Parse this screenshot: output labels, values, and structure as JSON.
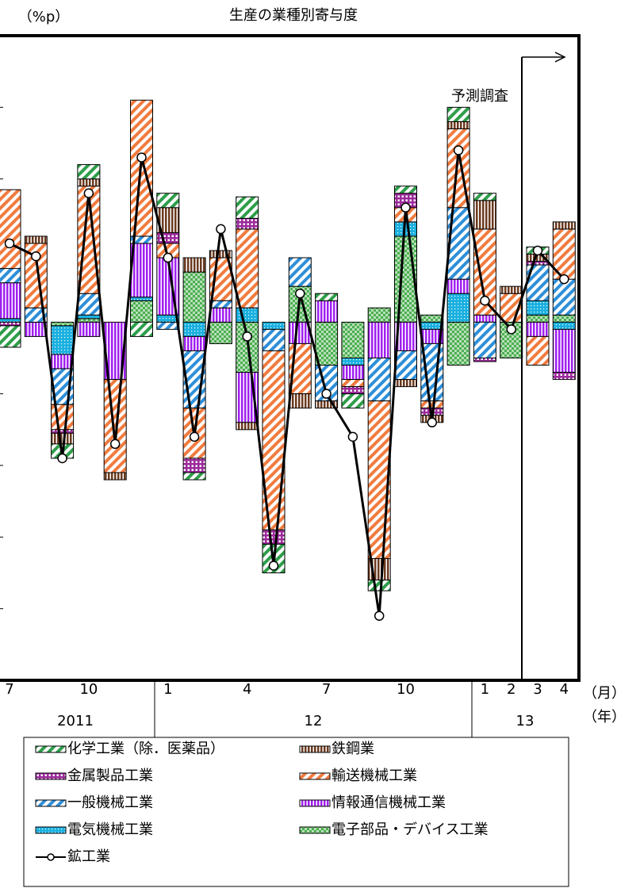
{
  "chart_data": {
    "type": "bar",
    "stacked": true,
    "title": "生産の業種別寄与度",
    "y_unit": "（%p）",
    "annotation": "予測調査",
    "x_unit": "（月）",
    "year_unit": "（年）",
    "years": [
      "2011",
      "12",
      "13"
    ],
    "categories": [
      "7",
      null,
      null,
      "10",
      null,
      null,
      "1",
      null,
      null,
      "4",
      null,
      null,
      "7",
      null,
      null,
      "10",
      null,
      null,
      "1",
      "2",
      "3",
      "4"
    ],
    "ylim": [
      -5,
      4
    ],
    "yticks": [
      -4,
      -3,
      -2,
      -1,
      0,
      1,
      2,
      3
    ],
    "series": [
      {
        "name": "化学工業（除．医薬品）",
        "color": "#2e9e4a",
        "pattern": "diagonal",
        "values": [
          -0.3,
          0,
          -0.2,
          0.2,
          0,
          -0.2,
          0.2,
          -0.1,
          0,
          0.3,
          -0.4,
          0,
          0.1,
          -0.2,
          -0.15,
          0.1,
          0,
          0.2,
          0.1,
          0,
          0.1,
          0
        ]
      },
      {
        "name": "鉄鋼業",
        "color": "#6b3a1f",
        "pattern": "vertical",
        "values": [
          0,
          0.1,
          -0.15,
          0.1,
          -0.1,
          0,
          0.35,
          0.2,
          0.1,
          -0.1,
          0,
          -0.2,
          -0.1,
          0,
          -0.3,
          -0.1,
          -0.1,
          0.1,
          0.4,
          0.1,
          0.1,
          0.1
        ]
      },
      {
        "name": "金属製品工業",
        "color": "#9b2a9b",
        "pattern": "grid",
        "values": [
          -0.05,
          0,
          -0.05,
          0,
          0,
          0,
          0.15,
          -0.2,
          0,
          0.15,
          -0.2,
          0,
          0,
          -0.1,
          0,
          0.2,
          -0.1,
          0,
          -0.05,
          0,
          0.05,
          -0.1
        ]
      },
      {
        "name": "輸送機械工業",
        "color": "#f07b3f",
        "pattern": "diagonal",
        "values": [
          1.1,
          0.9,
          -0.35,
          1.5,
          -1.3,
          1.9,
          0.2,
          -0.7,
          0.6,
          1.1,
          -2.5,
          -0.7,
          0,
          -0.1,
          -2.2,
          0.2,
          -0.1,
          1.1,
          1.2,
          0.4,
          -0.4,
          0.7
        ]
      },
      {
        "name": "一般機械工業",
        "color": "#2f8fd8",
        "pattern": "diagonal",
        "values": [
          0.2,
          0.2,
          -0.5,
          0.3,
          0,
          0.1,
          -0.1,
          -0.8,
          0.1,
          0,
          -0.3,
          0.4,
          -0.5,
          0,
          -0.6,
          -0.4,
          -0.8,
          1.0,
          -0.5,
          0,
          0.5,
          0.5
        ]
      },
      {
        "name": "情報通信機械工業",
        "color": "#a020f0",
        "pattern": "vertical",
        "values": [
          0.5,
          -0.2,
          -0.2,
          -0.2,
          -0.8,
          0.75,
          0.8,
          -0.2,
          0.2,
          -0.7,
          0,
          -0.3,
          0.3,
          -0.2,
          -0.5,
          -0.4,
          -0.2,
          0.2,
          0.1,
          0,
          -0.2,
          -0.6
        ]
      },
      {
        "name": "電気機械工業",
        "color": "#1ab0e0",
        "pattern": "dots",
        "values": [
          0.05,
          0,
          -0.4,
          0.05,
          0,
          0.05,
          0.1,
          -0.2,
          0,
          0.2,
          -0.1,
          0,
          0,
          -0.1,
          0,
          0.2,
          -0.1,
          0.4,
          0,
          0,
          0.2,
          -0.1
        ]
      },
      {
        "name": "電子部品・デバイス工業",
        "color": "#4caf50",
        "pattern": "check",
        "values": [
          0,
          0,
          -0.05,
          0.05,
          0,
          0.3,
          0,
          0.7,
          -0.3,
          -0.7,
          0,
          0.5,
          -0.6,
          -0.5,
          0.2,
          1.2,
          0.1,
          -0.6,
          0,
          -0.5,
          0.1,
          0.1
        ]
      }
    ],
    "line": {
      "name": "鉱工業",
      "color": "#000000",
      "values": [
        1.1,
        0.92,
        -1.9,
        1.8,
        -1.7,
        2.3,
        0.9,
        -1.6,
        1.3,
        -0.2,
        -3.4,
        0.4,
        -1.0,
        -1.6,
        -4.1,
        1.6,
        -1.4,
        2.4,
        0.3,
        -0.1,
        1.0,
        0.6
      ]
    }
  }
}
